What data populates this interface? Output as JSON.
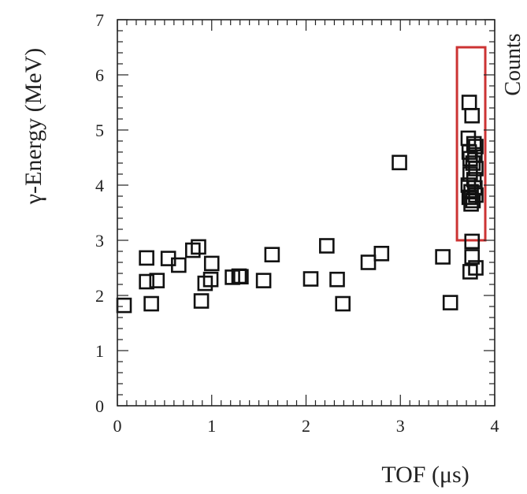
{
  "chart_data": {
    "type": "scatter",
    "title": "",
    "xlabel": "TOF (μs)",
    "ylabel": "γ-Energy (MeV)",
    "right_label": "Counts",
    "xlim": [
      0,
      4
    ],
    "ylim": [
      0,
      7
    ],
    "x_ticks": [
      "0",
      "1",
      "2",
      "3",
      "4"
    ],
    "y_ticks": [
      "0",
      "1",
      "2",
      "3",
      "4",
      "5",
      "6",
      "7"
    ],
    "grid": false,
    "marker": "open-square",
    "marker_color": "#111111",
    "highlight_box": {
      "x_range": [
        3.6,
        3.9
      ],
      "y_range": [
        3.0,
        6.5
      ],
      "color": "#cc3333"
    },
    "points": [
      [
        0.0,
        1.82
      ],
      [
        0.31,
        2.68
      ],
      [
        0.31,
        2.25
      ],
      [
        0.36,
        1.85
      ],
      [
        0.42,
        2.27
      ],
      [
        0.54,
        2.67
      ],
      [
        0.65,
        2.55
      ],
      [
        0.8,
        2.82
      ],
      [
        0.86,
        2.88
      ],
      [
        0.89,
        1.9
      ],
      [
        0.93,
        2.22
      ],
      [
        0.99,
        2.29
      ],
      [
        1.0,
        2.58
      ],
      [
        1.22,
        2.33
      ],
      [
        1.29,
        2.35
      ],
      [
        1.31,
        2.34
      ],
      [
        1.55,
        2.27
      ],
      [
        1.64,
        2.74
      ],
      [
        2.05,
        2.3
      ],
      [
        2.22,
        2.9
      ],
      [
        2.33,
        2.29
      ],
      [
        2.39,
        1.85
      ],
      [
        2.66,
        2.6
      ],
      [
        2.8,
        2.76
      ],
      [
        2.99,
        4.41
      ],
      [
        3.45,
        2.7
      ],
      [
        3.53,
        1.87
      ],
      [
        3.73,
        5.5
      ],
      [
        3.76,
        5.26
      ],
      [
        3.72,
        4.85
      ],
      [
        3.78,
        4.75
      ],
      [
        3.8,
        4.7
      ],
      [
        3.73,
        4.6
      ],
      [
        3.79,
        4.55
      ],
      [
        3.74,
        4.48
      ],
      [
        3.77,
        4.4
      ],
      [
        3.8,
        4.3
      ],
      [
        3.74,
        4.2
      ],
      [
        3.78,
        4.1
      ],
      [
        3.72,
        4.0
      ],
      [
        3.79,
        3.95
      ],
      [
        3.75,
        3.88
      ],
      [
        3.8,
        3.82
      ],
      [
        3.73,
        3.78
      ],
      [
        3.77,
        3.72
      ],
      [
        3.75,
        3.66
      ],
      [
        3.76,
        2.98
      ],
      [
        3.76,
        2.7
      ],
      [
        3.74,
        2.43
      ],
      [
        3.8,
        2.5
      ]
    ]
  }
}
